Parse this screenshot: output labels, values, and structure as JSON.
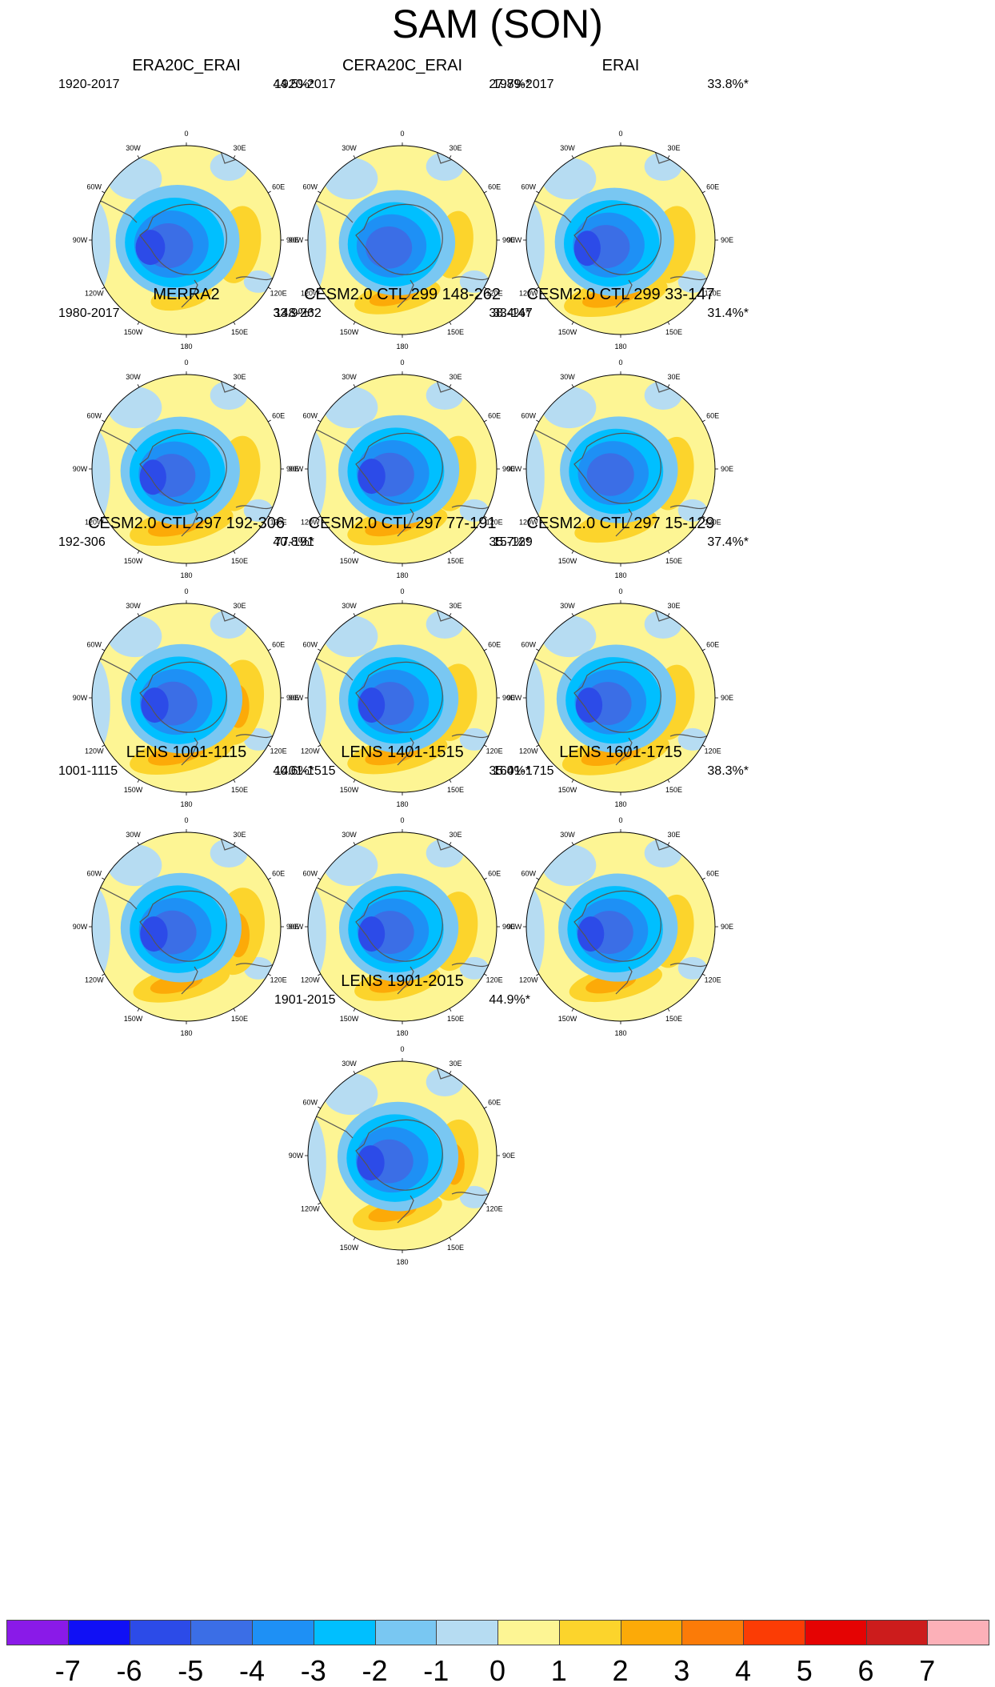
{
  "title": "SAM (SON)",
  "panels": [
    {
      "title": "ERA20C_ERAI",
      "period": "1920-2017",
      "variance": "44.5%*",
      "pattern": {
        "core": 0.9,
        "trough_shift": [
          -0.5,
          0.05
        ],
        "ring": 0.45,
        "east_high": 0.55,
        "south_high": 0.2
      }
    },
    {
      "title": "CERA20C_ERAI",
      "period": "1920-2017",
      "variance": "27.8%*",
      "pattern": {
        "core": 0.65,
        "trough_shift": [
          -0.3,
          0.15
        ],
        "ring": 0.5,
        "east_high": 0.3,
        "south_high": 0.55
      }
    },
    {
      "title": "ERAI",
      "period": "1979-2017",
      "variance": "33.8%*",
      "pattern": {
        "core": 0.75,
        "trough_shift": [
          -0.35,
          0.1
        ],
        "ring": 0.4,
        "east_high": 0.55,
        "south_high": 0.8
      }
    },
    {
      "title": "MERRA2",
      "period": "1980-2017",
      "variance": "33.9%*",
      "pattern": {
        "core": 0.75,
        "trough_shift": [
          -0.35,
          0.1
        ],
        "ring": 0.4,
        "east_high": 0.5,
        "south_high": 0.8
      }
    },
    {
      "title": "CESM2.0 CTL 299 148-262",
      "period": "148-262",
      "variance": "38.4%*",
      "pattern": {
        "core": 0.8,
        "trough_shift": [
          -0.2,
          0.05
        ],
        "ring": 0.45,
        "east_high": 0.5,
        "south_high": 0.75
      }
    },
    {
      "title": "CESM2.0 CTL 299 33-147",
      "period": "33-147",
      "variance": "31.4%*",
      "pattern": {
        "core": 0.7,
        "trough_shift": [
          -0.1,
          0.05
        ],
        "ring": 0.45,
        "east_high": 0.45,
        "south_high": 0.5
      }
    },
    {
      "title": "CESM2.0 CTL 297 192-306",
      "period": "192-306",
      "variance": "40.8%*",
      "pattern": {
        "core": 0.8,
        "trough_shift": [
          -0.25,
          0.05
        ],
        "ring": 0.45,
        "east_high": 0.75,
        "south_high": 0.8
      }
    },
    {
      "title": "CESM2.0 CTL 297 77-191",
      "period": "77-191",
      "variance": "35.7%*",
      "pattern": {
        "core": 0.75,
        "trough_shift": [
          -0.2,
          0.05
        ],
        "ring": 0.45,
        "east_high": 0.55,
        "south_high": 0.75
      }
    },
    {
      "title": "CESM2.0 CTL 297 15-129",
      "period": "15-129",
      "variance": "37.4%*",
      "pattern": {
        "core": 0.75,
        "trough_shift": [
          -0.25,
          0.05
        ],
        "ring": 0.45,
        "east_high": 0.5,
        "south_high": 0.85
      }
    },
    {
      "title": "LENS 1001-1115",
      "period": "1001-1115",
      "variance": "40.6%*",
      "pattern": {
        "core": 0.8,
        "trough_shift": [
          -0.3,
          0.05
        ],
        "ring": 0.45,
        "east_high": 0.8,
        "south_high": 0.7
      }
    },
    {
      "title": "LENS 1401-1515",
      "period": "1401-1515",
      "variance": "35.4%*",
      "pattern": {
        "core": 0.75,
        "trough_shift": [
          -0.2,
          0.05
        ],
        "ring": 0.45,
        "east_high": 0.6,
        "south_high": 0.55
      }
    },
    {
      "title": "LENS 1601-1715",
      "period": "1601-1715",
      "variance": "38.3%*",
      "pattern": {
        "core": 0.75,
        "trough_shift": [
          -0.15,
          0.05
        ],
        "ring": 0.45,
        "east_high": 0.45,
        "south_high": 0.65
      }
    },
    {
      "title": "LENS 1901-2015",
      "period": "1901-2015",
      "variance": "44.9%*",
      "pattern": {
        "core": 0.8,
        "trough_shift": [
          -0.25,
          0.05
        ],
        "ring": 0.45,
        "east_high": 0.65,
        "south_high": 0.6
      }
    }
  ],
  "longitude_labels": [
    "0",
    "30E",
    "60E",
    "90E",
    "120E",
    "150E",
    "180",
    "150W",
    "120W",
    "90W",
    "60W",
    "30W"
  ],
  "colorbar": {
    "colors": [
      "#8a1ae8",
      "#1010f5",
      "#2c4be8",
      "#3b6ee6",
      "#1e90f5",
      "#00bfff",
      "#79c7f2",
      "#b6dcf2",
      "#fdf594",
      "#fcd42c",
      "#fcaa08",
      "#fb7b08",
      "#fb3c05",
      "#e50303",
      "#cc1c1c",
      "#fcb0b8"
    ],
    "ticks": [
      "-7",
      "-6",
      "-5",
      "-4",
      "-3",
      "-2",
      "-1",
      "0",
      "1",
      "2",
      "3",
      "4",
      "5",
      "6",
      "7"
    ]
  }
}
